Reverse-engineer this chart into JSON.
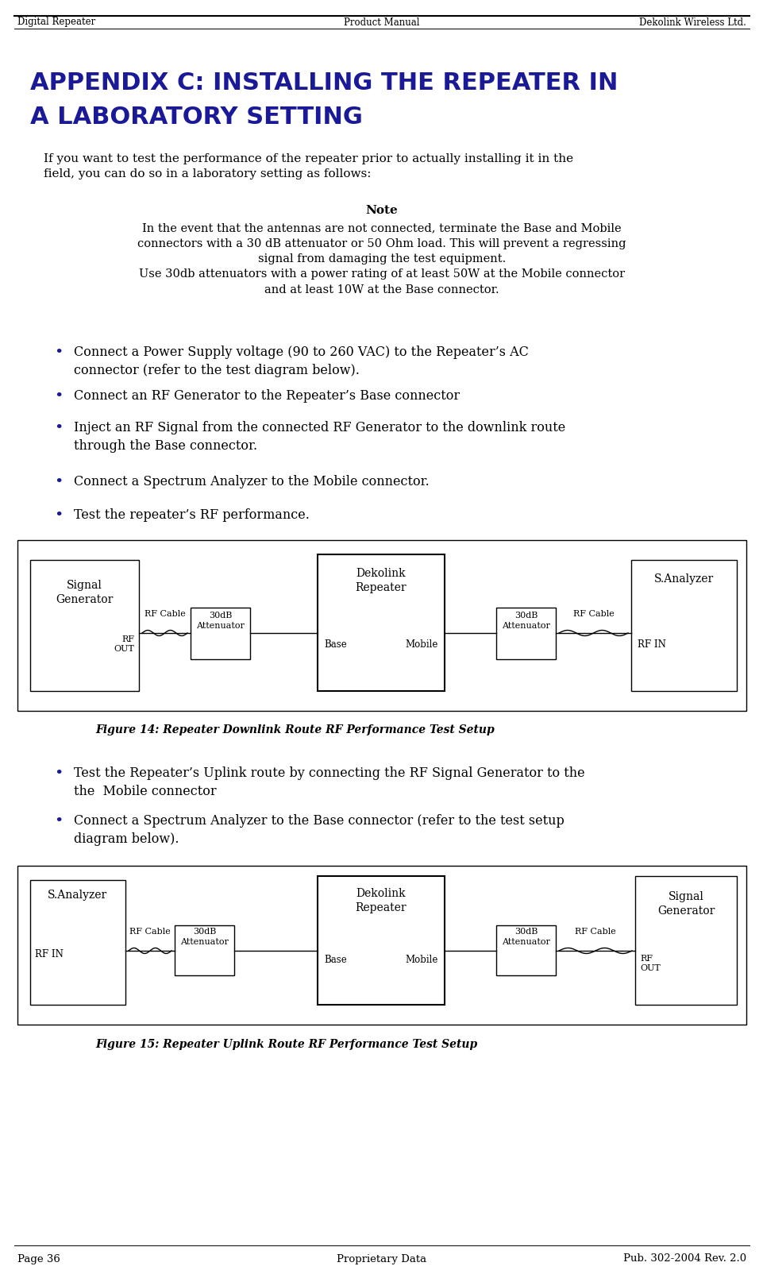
{
  "page_title_left": "Digital Repeater",
  "page_title_center": "Product Manual",
  "page_title_right": "Dekolink Wireless Ltd.",
  "appendix_title_line1": "APPENDIX C: INSTALLING THE REPEATER IN",
  "appendix_title_line2": "A LABORATORY SETTING",
  "intro_text": "If you want to test the performance of the repeater prior to actually installing it in the\nfield, you can do so in a laboratory setting as follows:",
  "note_title": "Note",
  "note_text": "In the event that the antennas are not connected, terminate the Base and Mobile\nconnectors with a 30 dB attenuator or 50 Ohm load. This will prevent a regressing\nsignal from damaging the test equipment.\nUse 30db attenuators with a power rating of at least 50W at the Mobile connector\nand at least 10W at the Base connector.",
  "bullets": [
    "Connect a Power Supply voltage (90 to 260 VAC) to the Repeater’s AC\nconnector (refer to the test diagram below).",
    "Connect an RF Generator to the Repeater’s Base connector",
    "Inject an RF Signal from the connected RF Generator to the downlink route\nthrough the Base connector.",
    "Connect a Spectrum Analyzer to the Mobile connector.",
    "Test the repeater’s RF performance."
  ],
  "fig14_caption": "Figure 14: Repeater Downlink Route RF Performance Test Setup",
  "bullets2": [
    "Test the Repeater’s Uplink route by connecting the RF Signal Generator to the\nthe  Mobile connector",
    "Connect a Spectrum Analyzer to the Base connector (refer to the test setup\ndiagram below)."
  ],
  "fig15_caption": "Figure 15: Repeater Uplink Route RF Performance Test Setup",
  "footer_left": "Page 36",
  "footer_center": "Proprietary Data",
  "footer_right": "Pub. 302-2004 Rev. 2.0",
  "title_color": "#1a1a99",
  "bg_color": "#ffffff",
  "text_color": "#000000",
  "header_font_size": 8.5,
  "title_font_size": 22,
  "body_font_size": 11,
  "note_font_size": 10.5,
  "bullet_font_size": 11.5,
  "caption_font_size": 10,
  "footer_font_size": 9.5
}
